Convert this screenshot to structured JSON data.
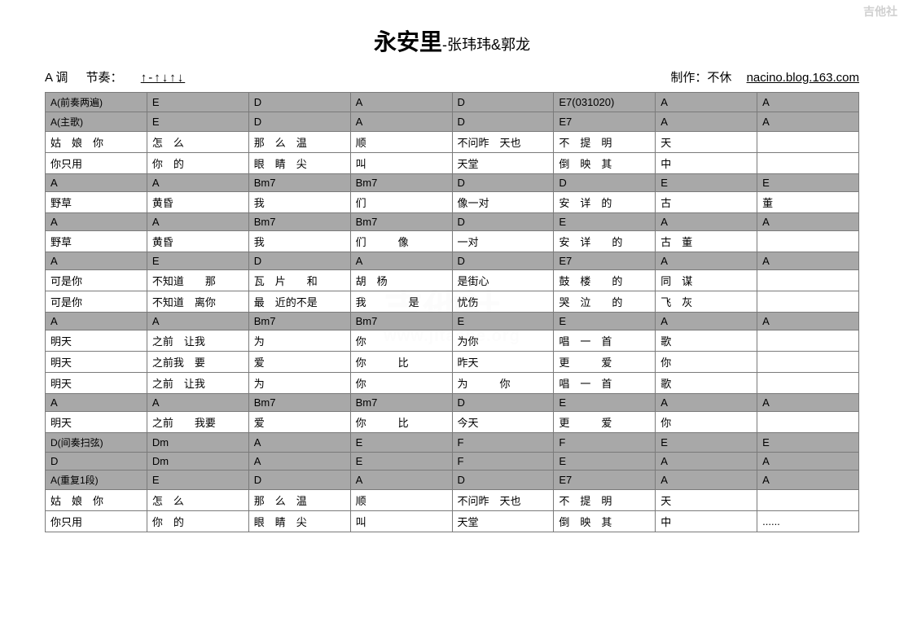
{
  "watermark_corner": "吉他社",
  "watermark_main": "吉他社",
  "watermark_sub": "www.jitashe.org",
  "title": "永安里",
  "artist_sep": "-",
  "artist": "张玮玮&郭龙",
  "key_label": "A 调",
  "rhythm_label": "节奏：",
  "rhythm_pattern": "↑-↑↓↑↓",
  "credit_label": "制作：不休",
  "credit_blog": "nacino.blog.163.com",
  "table": {
    "col_count": 8,
    "rows": [
      {
        "gray": true,
        "cells": [
          "A(前奏两遍)",
          "E",
          "D",
          "A",
          "D",
          "E7(031020)",
          "A",
          "A"
        ]
      },
      {
        "gray": true,
        "cells": [
          "A(主歌)",
          "E",
          "D",
          "A",
          "D",
          "E7",
          "A",
          "A"
        ]
      },
      {
        "gray": false,
        "cells": [
          "姑　娘　你",
          "怎　么",
          "那　么　温",
          "顺",
          "不问昨　天也",
          "不　提　明",
          "天",
          ""
        ]
      },
      {
        "gray": false,
        "cells": [
          "你只用",
          "你　的",
          "眼　睛　尖",
          "叫",
          "天堂",
          "倒　映　其",
          "中",
          ""
        ]
      },
      {
        "gray": true,
        "cells": [
          "A",
          "A",
          "Bm7",
          "Bm7",
          "D",
          "D",
          "E",
          "E"
        ]
      },
      {
        "gray": false,
        "cells": [
          "野草",
          "黄昏",
          "我",
          "们",
          "像一对",
          "安　详　的",
          "古",
          "董"
        ]
      },
      {
        "gray": true,
        "cells": [
          "A",
          "A",
          "Bm7",
          "Bm7",
          "D",
          "E",
          "A",
          "A"
        ]
      },
      {
        "gray": false,
        "cells": [
          "野草",
          "黄昏",
          "我",
          "们　　　像",
          "一对",
          "安　详　　的",
          "古　董",
          ""
        ]
      },
      {
        "gray": true,
        "cells": [
          "A",
          "E",
          "D",
          "A",
          "D",
          "E7",
          "A",
          "A"
        ]
      },
      {
        "gray": false,
        "cells": [
          "可是你",
          "不知道　　那",
          "瓦　片　　和",
          "胡　杨",
          "是街心",
          "鼓　楼　　的",
          "同　谋",
          ""
        ]
      },
      {
        "gray": false,
        "cells": [
          "可是你",
          "不知道　离你",
          "最　近的不是",
          "我　　　　是",
          "忧伤",
          "哭　泣　　的",
          "飞　灰",
          ""
        ]
      },
      {
        "gray": true,
        "cells": [
          "A",
          "A",
          "Bm7",
          "Bm7",
          "E",
          "E",
          "A",
          "A"
        ]
      },
      {
        "gray": false,
        "cells": [
          "明天",
          "之前　让我",
          "为",
          "你",
          "为你",
          "唱　一　首",
          "歌",
          ""
        ]
      },
      {
        "gray": false,
        "cells": [
          "明天",
          "之前我　要",
          "爱",
          "你　　　比",
          "昨天",
          "更　　　爱",
          "你",
          ""
        ]
      },
      {
        "gray": false,
        "cells": [
          "明天",
          "之前　让我",
          "为",
          "你",
          "为　　　你",
          "唱　一　首",
          "歌",
          ""
        ]
      },
      {
        "gray": true,
        "cells": [
          "A",
          "A",
          "Bm7",
          "Bm7",
          "D",
          "E",
          "A",
          "A"
        ]
      },
      {
        "gray": false,
        "cells": [
          "明天",
          "之前　　我要",
          "爱",
          "你　　　比",
          "今天",
          "更　　　爱",
          "你",
          ""
        ]
      },
      {
        "gray": true,
        "cells": [
          "D(间奏扫弦)",
          "Dm",
          "A",
          "E",
          "F",
          "F",
          "E",
          "E"
        ]
      },
      {
        "gray": true,
        "cells": [
          "D",
          "Dm",
          "A",
          "E",
          "F",
          "E",
          "A",
          "A"
        ]
      },
      {
        "gray": true,
        "cells": [
          "A(重复1段)",
          "E",
          "D",
          "A",
          "D",
          "E7",
          "A",
          "A"
        ]
      },
      {
        "gray": false,
        "cells": [
          "姑　娘　你",
          "怎　么",
          "那　么　温",
          "顺",
          "不问昨　天也",
          "不　提　明",
          "天",
          ""
        ]
      },
      {
        "gray": false,
        "cells": [
          "你只用",
          "你　的",
          "眼　睛　尖",
          "叫",
          "天堂",
          "倒　映　其",
          "中",
          "......"
        ]
      }
    ]
  }
}
